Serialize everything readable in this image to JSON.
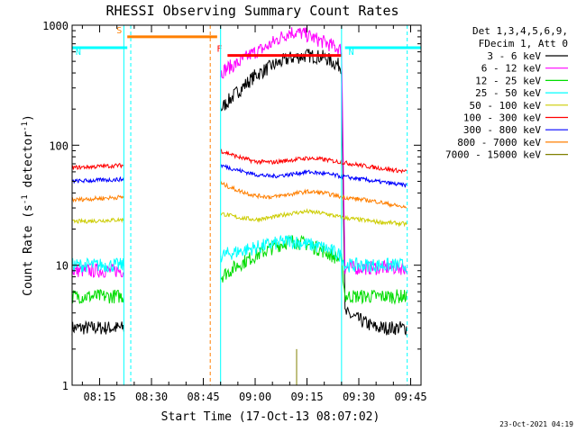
{
  "title": "RHESSI Observing Summary Count Rates",
  "timestamp": "23-Oct-2021 04:19",
  "legend": {
    "header": [
      "Det 1,3,4,5,6,9,",
      "FDecim 1, Att 0"
    ],
    "items": [
      {
        "label": "3 - 6 keV",
        "color": "#000000"
      },
      {
        "label": "6 - 12 keV",
        "color": "#ff00ff"
      },
      {
        "label": "12 - 25 keV",
        "color": "#00dd00"
      },
      {
        "label": "25 - 50 keV",
        "color": "#00ffff"
      },
      {
        "label": "50 - 100 keV",
        "color": "#cccc00"
      },
      {
        "label": "100 - 300 keV",
        "color": "#ff0000"
      },
      {
        "label": "300 - 800 keV",
        "color": "#0000ff"
      },
      {
        "label": "800 - 7000 keV",
        "color": "#ff7f00"
      },
      {
        "label": "7000 - 15000 keV",
        "color": "#808000"
      }
    ]
  },
  "chart_data": {
    "type": "line",
    "title": "RHESSI Observing Summary Count Rates",
    "xlabel": "Start Time (17-Oct-13 08:07:02)",
    "ylabel": "Count Rate (s⁻¹ detector⁻¹)",
    "ylabel_parts": [
      "Count Rate (s",
      "-1",
      " detector",
      "-1",
      ")"
    ],
    "yscale": "log",
    "ylim": [
      1,
      1000
    ],
    "xlim": [
      "08:07:02",
      "09:48:00"
    ],
    "x_ticks": [
      "08:15",
      "08:30",
      "08:45",
      "09:00",
      "09:15",
      "09:30",
      "09:45"
    ],
    "y_ticks": [
      "1",
      "10",
      "100",
      "1000"
    ],
    "flags": [
      {
        "label": "S",
        "color": "#ff7f00",
        "start": "08:23",
        "end": "08:49",
        "level": 800
      },
      {
        "label": "N",
        "color": "#00ffff",
        "start": "08:07",
        "end": "08:23",
        "level": 650
      },
      {
        "label": "N",
        "color": "#00ffff",
        "start": "09:26",
        "end": "09:48",
        "level": 650
      },
      {
        "label": "F",
        "color": "#ff0000",
        "start": "08:52",
        "end": "09:25",
        "level": 560
      }
    ],
    "markers": [
      {
        "time": "08:22",
        "color": "#00ffff",
        "style": "solid"
      },
      {
        "time": "08:24",
        "color": "#00ffff",
        "style": "dashed"
      },
      {
        "time": "08:47",
        "color": "#ff7f00",
        "style": "dashed"
      },
      {
        "time": "08:50",
        "color": "#00ffff",
        "style": "solid"
      },
      {
        "time": "09:25",
        "color": "#00ffff",
        "style": "solid"
      },
      {
        "time": "09:44",
        "color": "#00ffff",
        "style": "dashed"
      }
    ],
    "gaps": [
      [
        "08:22",
        "08:50"
      ]
    ],
    "series": [
      {
        "name": "3 - 6 keV",
        "color": "#000000",
        "x": [
          "08:07",
          "08:22",
          "08:50",
          "08:52",
          "08:55",
          "09:00",
          "09:05",
          "09:10",
          "09:15",
          "09:20",
          "09:25",
          "09:26",
          "09:35",
          "09:44"
        ],
        "values": [
          3,
          3,
          200,
          230,
          280,
          380,
          460,
          530,
          560,
          540,
          450,
          4,
          3,
          3
        ]
      },
      {
        "name": "6 - 12 keV",
        "color": "#ff00ff",
        "x": [
          "08:07",
          "08:22",
          "08:50",
          "08:52",
          "08:55",
          "08:59",
          "09:03",
          "09:07",
          "09:10",
          "09:14",
          "09:18",
          "09:22",
          "09:25",
          "09:26",
          "09:35",
          "09:44"
        ],
        "values": [
          9,
          9,
          400,
          440,
          480,
          580,
          650,
          780,
          880,
          850,
          760,
          680,
          620,
          9.5,
          9.5,
          9.5
        ]
      },
      {
        "name": "12 - 25 keV",
        "color": "#00dd00",
        "x": [
          "08:07",
          "08:22",
          "08:50",
          "08:55",
          "09:00",
          "09:05",
          "09:10",
          "09:15",
          "09:20",
          "09:25",
          "09:26",
          "09:35",
          "09:44"
        ],
        "values": [
          5.5,
          5.5,
          8,
          10,
          12,
          14,
          16,
          15,
          13,
          11,
          5.5,
          5.5,
          5.5
        ]
      },
      {
        "name": "25 - 50 keV",
        "color": "#00ffff",
        "x": [
          "08:07",
          "08:22",
          "08:50",
          "08:55",
          "09:00",
          "09:05",
          "09:10",
          "09:15",
          "09:20",
          "09:25",
          "09:26",
          "09:35",
          "09:44"
        ],
        "values": [
          10,
          10,
          12,
          13,
          14,
          15,
          16,
          15,
          14,
          12,
          10,
          10,
          10
        ]
      },
      {
        "name": "50 - 100 keV",
        "color": "#cccc00",
        "x": [
          "08:07",
          "08:22",
          "08:50",
          "08:55",
          "09:00",
          "09:05",
          "09:10",
          "09:15",
          "09:20",
          "09:25",
          "09:35",
          "09:44"
        ],
        "values": [
          23,
          24,
          27,
          25,
          24,
          25,
          27,
          28,
          27,
          25,
          23,
          22
        ]
      },
      {
        "name": "100 - 300 keV",
        "color": "#ff0000",
        "x": [
          "08:07",
          "08:22",
          "08:50",
          "08:55",
          "09:00",
          "09:05",
          "09:10",
          "09:15",
          "09:20",
          "09:25",
          "09:35",
          "09:44"
        ],
        "values": [
          65,
          68,
          90,
          80,
          73,
          72,
          75,
          78,
          76,
          72,
          65,
          60
        ]
      },
      {
        "name": "300 - 800 keV",
        "color": "#0000ff",
        "x": [
          "08:07",
          "08:22",
          "08:50",
          "08:55",
          "09:00",
          "09:05",
          "09:10",
          "09:15",
          "09:20",
          "09:25",
          "09:35",
          "09:44"
        ],
        "values": [
          50,
          52,
          68,
          62,
          57,
          55,
          57,
          60,
          58,
          55,
          50,
          46
        ]
      },
      {
        "name": "800 - 7000 keV",
        "color": "#ff7f00",
        "x": [
          "08:07",
          "08:22",
          "08:50",
          "08:55",
          "09:00",
          "09:05",
          "09:10",
          "09:15",
          "09:20",
          "09:25",
          "09:35",
          "09:44"
        ],
        "values": [
          35,
          37,
          48,
          42,
          38,
          37,
          39,
          41,
          40,
          37,
          34,
          30
        ]
      },
      {
        "name": "7000 - 15000 keV",
        "color": "#808000",
        "x": [
          "09:12",
          "09:12"
        ],
        "values": [
          1,
          2
        ]
      }
    ]
  }
}
